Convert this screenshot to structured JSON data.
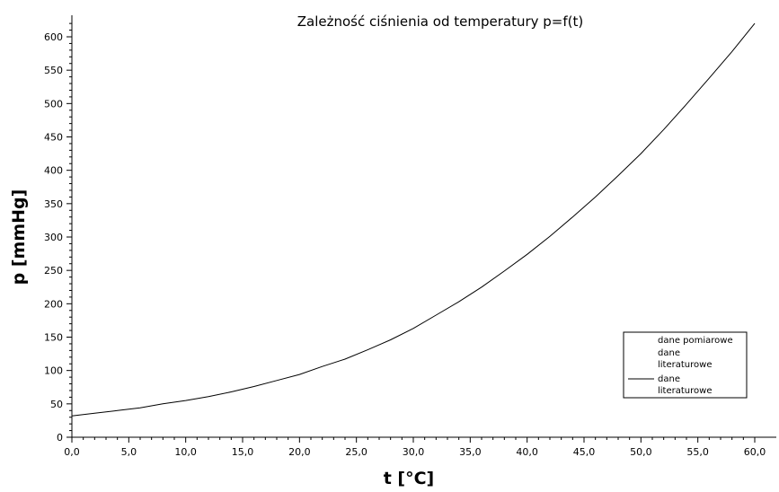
{
  "chart_data": {
    "type": "line",
    "title": "Zależność ciśnienia od temperatury p=f(t)",
    "xlabel": "t [°C]",
    "ylabel": "p [mmHg]",
    "xlim": [
      0,
      60
    ],
    "ylim": [
      0,
      620
    ],
    "grid": false,
    "legend_position": "bottom-right",
    "x_tick_labels": [
      "0,0",
      "5,0",
      "10,0",
      "15,0",
      "20,0",
      "25,0",
      "30,0",
      "35,0",
      "40,0",
      "45,0",
      "50,0",
      "55,0",
      "60,0"
    ],
    "y_tick_labels": [
      "0",
      "50",
      "100",
      "150",
      "200",
      "250",
      "300",
      "350",
      "400",
      "450",
      "500",
      "550",
      "600"
    ],
    "legend": [
      {
        "lines": [
          "dane pomiarowe"
        ],
        "marker": "none"
      },
      {
        "lines": [
          "dane",
          "literaturowe"
        ],
        "marker": "none"
      },
      {
        "lines": [
          "dane",
          "literaturowe"
        ],
        "marker": "line"
      }
    ],
    "series": [
      {
        "style": "line",
        "color": "#000000",
        "x": [
          0,
          2,
          4,
          6,
          8,
          10,
          12,
          14,
          16,
          18,
          20,
          22,
          24,
          26,
          28,
          30,
          32,
          34,
          36,
          38,
          40,
          42,
          44,
          46,
          48,
          50,
          52,
          54,
          56,
          58,
          60
        ],
        "y": [
          32,
          36,
          40,
          44,
          50,
          55,
          61,
          68,
          76,
          85,
          94,
          106,
          117,
          131,
          146,
          163,
          183,
          203,
          225,
          249,
          274,
          301,
          330,
          360,
          392,
          425,
          461,
          499,
          538,
          578,
          620
        ]
      }
    ]
  }
}
